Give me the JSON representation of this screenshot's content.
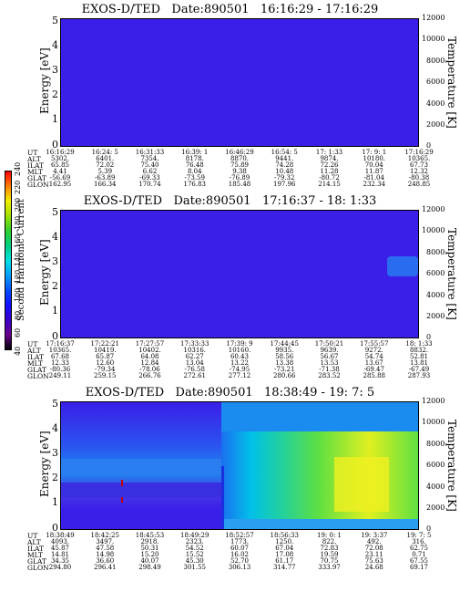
{
  "panels": [
    {
      "title": "EXOS-D/TED   Date:890501   16:16:29 - 17:16:29",
      "ylabel": "Energy [eV]",
      "rlabel": "Temperature [K]",
      "yticks": [
        "5",
        "4",
        "3",
        "2",
        "1",
        "0"
      ],
      "rticks": [
        "12000",
        "10000",
        "8000",
        "6000",
        "4000",
        "2000",
        "0"
      ],
      "rows": [
        {
          "label": "UT",
          "values": [
            "16:16:29",
            "16:24: 5",
            "16:31:33",
            "16:39: 1",
            "16:46:29",
            "16:54: 5",
            "17: 1:33",
            "17: 9: 1",
            "17:16:29"
          ]
        },
        {
          "label": "ALT",
          "values": [
            "5302.",
            "6401.",
            "7354.",
            "8178.",
            "8870.",
            "9441.",
            "9874.",
            "10180.",
            "10365."
          ]
        },
        {
          "label": "ILAT",
          "values": [
            "65.85",
            "72.02",
            "75.40",
            "76.48",
            "75.89",
            "74.28",
            "72.26",
            "70.04",
            "67.73"
          ]
        },
        {
          "label": "MLT",
          "values": [
            "4.41",
            "5.39",
            "6.62",
            "8.04",
            "9.38",
            "10.48",
            "11.28",
            "11.87",
            "12.32"
          ]
        },
        {
          "label": "GLAT",
          "values": [
            "-56.69",
            "-63.89",
            "-69.33",
            "-73.59",
            "-76.89",
            "-79.32",
            "-80.72",
            "-81.04",
            "-80.38"
          ]
        },
        {
          "label": "GLON",
          "values": [
            "162.95",
            "166.34",
            "170.74",
            "176.83",
            "185.48",
            "197.96",
            "214.15",
            "232.34",
            "248.85"
          ]
        }
      ]
    },
    {
      "title": "EXOS-D/TED   Date:890501   17:16:37 - 18: 1:33",
      "ylabel": "Energy [eV]",
      "rlabel": "Temperature [K]",
      "yticks": [
        "5",
        "4",
        "3",
        "2",
        "1",
        "0"
      ],
      "rticks": [
        "12000",
        "10000",
        "8000",
        "6000",
        "4000",
        "2000",
        "0"
      ],
      "rows": [
        {
          "label": "UT",
          "values": [
            "17:16:37",
            "17:22:21",
            "17:27:57",
            "17:33:33",
            "17:39: 9",
            "17:44:45",
            "17:50:21",
            "17:55:57",
            "18: 1:33"
          ]
        },
        {
          "label": "ALT",
          "values": [
            "10365.",
            "10419.",
            "10402.",
            "10316.",
            "10160.",
            "9935.",
            "9639.",
            "9272.",
            "8832."
          ]
        },
        {
          "label": "ILAT",
          "values": [
            "67.68",
            "65.87",
            "64.08",
            "62.27",
            "60.43",
            "58.56",
            "56.67",
            "54.74",
            "52.81"
          ]
        },
        {
          "label": "MLT",
          "values": [
            "12.33",
            "12.60",
            "12.84",
            "13.04",
            "13.22",
            "13.38",
            "13.53",
            "13.67",
            "13.81"
          ]
        },
        {
          "label": "GLAT",
          "values": [
            "-80.36",
            "-79.34",
            "-78.06",
            "-76.58",
            "-74.95",
            "-73.21",
            "-71.38",
            "-69.47",
            "-67.49"
          ]
        },
        {
          "label": "GLON",
          "values": [
            "249.11",
            "259.15",
            "266.76",
            "272.61",
            "277.12",
            "280.66",
            "283.52",
            "285.88",
            "287.93"
          ]
        }
      ]
    },
    {
      "title": "EXOS-D/TED   Date:890501   18:38:49 - 19: 7: 5",
      "ylabel": "Energy [eV]",
      "rlabel": "Temperature [K]",
      "yticks": [
        "5",
        "4",
        "3",
        "2",
        "1",
        "0"
      ],
      "rticks": [
        "12000",
        "10000",
        "8000",
        "6000",
        "4000",
        "2000",
        "0"
      ],
      "rows": [
        {
          "label": "UT",
          "values": [
            "18:38:49",
            "18:42:25",
            "18:45:53",
            "18:49:29",
            "18:52:57",
            "18:56:33",
            "19: 0: 1",
            "19: 3:37",
            "19: 7: 5"
          ]
        },
        {
          "label": "ALT",
          "values": [
            "4093.",
            "3497.",
            "2918.",
            "2323.",
            "1773.",
            "1250.",
            "822.",
            "492.",
            "316."
          ]
        },
        {
          "label": "ILAT",
          "values": [
            "45.87",
            "47.58",
            "50.31",
            "54.52",
            "60.07",
            "67.04",
            "72.83",
            "72.08",
            "62.75"
          ]
        },
        {
          "label": "MLT",
          "values": [
            "14.81",
            "14.98",
            "15.20",
            "15.52",
            "16.02",
            "17.08",
            "19.59",
            "23.11",
            "0.71"
          ]
        },
        {
          "label": "GLAT",
          "values": [
            "34.35",
            "36.60",
            "40.07",
            "45.30",
            "52.70",
            "61.17",
            "70.75",
            "75.63",
            "67.55"
          ]
        },
        {
          "label": "GLON",
          "values": [
            "294.80",
            "296.41",
            "298.49",
            "301.55",
            "306.13",
            "314.77",
            "333.97",
            "24.68",
            "69.17"
          ]
        }
      ]
    }
  ],
  "colorbar": {
    "label": "Second Harmonic Current",
    "ticks": [
      "40",
      "60",
      "80",
      "100",
      "120",
      "140",
      "160",
      "180",
      "200",
      "220",
      "240"
    ],
    "colors": [
      "#000000",
      "#6a0090",
      "#3a00c8",
      "#1010ff",
      "#0050ff",
      "#00a0ff",
      "#00e0e0",
      "#00d080",
      "#30d030",
      "#a0e000",
      "#f0f000",
      "#ff8000",
      "#ff0000"
    ]
  },
  "chart_data": [
    {
      "type": "heatmap",
      "title": "EXOS-D/TED   Date:890501   16:16:29 - 17:16:29",
      "ylabel": "Energy [eV]",
      "ylabel_right": "Temperature [K]",
      "ylim": [
        0,
        5
      ],
      "ylim_right": [
        0,
        12000
      ],
      "x_ticks": [
        "16:16:29",
        "16:24: 5",
        "16:31:33",
        "16:39: 1",
        "16:46:29",
        "16:54: 5",
        "17: 1:33",
        "17: 9: 1",
        "17:16:29"
      ],
      "fill": "uniform low (~80)"
    },
    {
      "type": "heatmap",
      "title": "EXOS-D/TED   Date:890501   17:16:37 - 18: 1:33",
      "ylabel": "Energy [eV]",
      "ylabel_right": "Temperature [K]",
      "ylim": [
        0,
        5
      ],
      "ylim_right": [
        0,
        12000
      ],
      "x_ticks": [
        "17:16:37",
        "17:22:21",
        "17:27:57",
        "17:33:33",
        "17:39: 9",
        "17:44:45",
        "17:50:21",
        "17:55:57",
        "18: 1:33"
      ],
      "fill": "uniform low (~80)"
    },
    {
      "type": "heatmap",
      "title": "EXOS-D/TED   Date:890501   18:38:49 - 19: 7: 5",
      "ylabel": "Energy [eV]",
      "ylabel_right": "Temperature [K]",
      "ylim": [
        0,
        5
      ],
      "ylim_right": [
        0,
        12000
      ],
      "x_ticks": [
        "18:38:49",
        "18:42:25",
        "18:45:53",
        "18:49:29",
        "18:52:57",
        "18:56:33",
        "19: 0: 1",
        "19: 3:37",
        "19: 7: 5"
      ],
      "fill": "banded; higher values (green-yellow) after 18:52"
    }
  ]
}
